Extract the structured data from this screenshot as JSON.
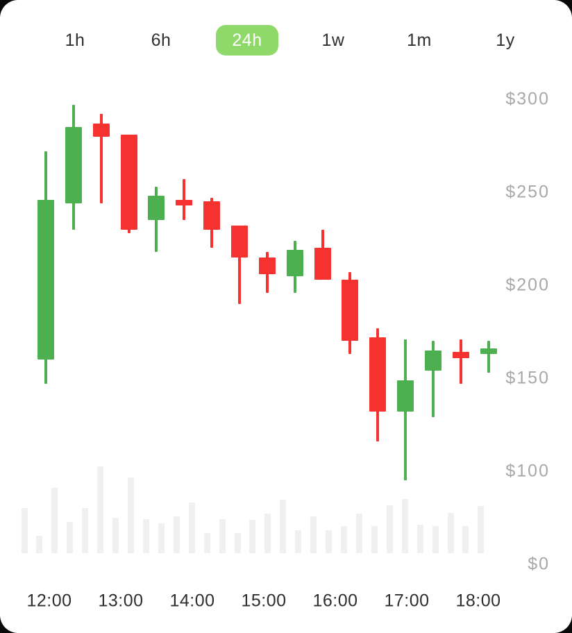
{
  "card": {
    "background": "#ffffff",
    "outside_background": "#0a0a0a"
  },
  "toolbar": {
    "timeframes": [
      {
        "label": "1h",
        "selected": false
      },
      {
        "label": "6h",
        "selected": false
      },
      {
        "label": "24h",
        "selected": true
      },
      {
        "label": "1w",
        "selected": false
      },
      {
        "label": "1m",
        "selected": false
      },
      {
        "label": "1y",
        "selected": false
      }
    ],
    "selected_bg": "#8fd96b",
    "selected_text": "#ffffff",
    "text_color": "#2f2f2f"
  },
  "chart_data": {
    "type": "candlestick",
    "title": "",
    "x_axis_labels": [
      "12:00",
      "13:00",
      "14:00",
      "15:00",
      "16:00",
      "17:00",
      "18:00"
    ],
    "y_axis_labels": [
      "$300",
      "$250",
      "$200",
      "$150",
      "$100",
      "$0"
    ],
    "ylim": [
      100,
      300
    ],
    "grid": false,
    "legend": false,
    "candles": [
      {
        "open": 160,
        "high": 272,
        "low": 147,
        "close": 246
      },
      {
        "open": 244,
        "high": 297,
        "low": 230,
        "close": 285
      },
      {
        "open": 287,
        "high": 292,
        "low": 244,
        "close": 280
      },
      {
        "open": 281,
        "high": 281,
        "low": 228,
        "close": 230
      },
      {
        "open": 235,
        "high": 253,
        "low": 218,
        "close": 248
      },
      {
        "open": 246,
        "high": 257,
        "low": 235,
        "close": 243
      },
      {
        "open": 245,
        "high": 247,
        "low": 220,
        "close": 230
      },
      {
        "open": 232,
        "high": 232,
        "low": 190,
        "close": 215
      },
      {
        "open": 215,
        "high": 218,
        "low": 196,
        "close": 206
      },
      {
        "open": 205,
        "high": 224,
        "low": 196,
        "close": 219
      },
      {
        "open": 220,
        "high": 230,
        "low": 203,
        "close": 203
      },
      {
        "open": 203,
        "high": 207,
        "low": 163,
        "close": 170
      },
      {
        "open": 172,
        "high": 177,
        "low": 116,
        "close": 132
      },
      {
        "open": 132,
        "high": 171,
        "low": 95,
        "close": 149
      },
      {
        "open": 154,
        "high": 170,
        "low": 129,
        "close": 165
      },
      {
        "open": 164,
        "high": 171,
        "low": 147,
        "close": 161
      },
      {
        "open": 163,
        "high": 170,
        "low": 153,
        "close": 166
      }
    ],
    "volume_relative": [
      65,
      25,
      94,
      45,
      65,
      125,
      51,
      109,
      49,
      43,
      53,
      73,
      29,
      49,
      29,
      48,
      57,
      77,
      33,
      53,
      33,
      39,
      57,
      39,
      69,
      78,
      41,
      39,
      58,
      39,
      68
    ],
    "colors": {
      "up": "#4caf50",
      "down": "#f5322f",
      "volume": "#f0f0f0",
      "y_axis_text": "#a6a9ab",
      "x_axis_text": "#2e2e2e"
    }
  }
}
